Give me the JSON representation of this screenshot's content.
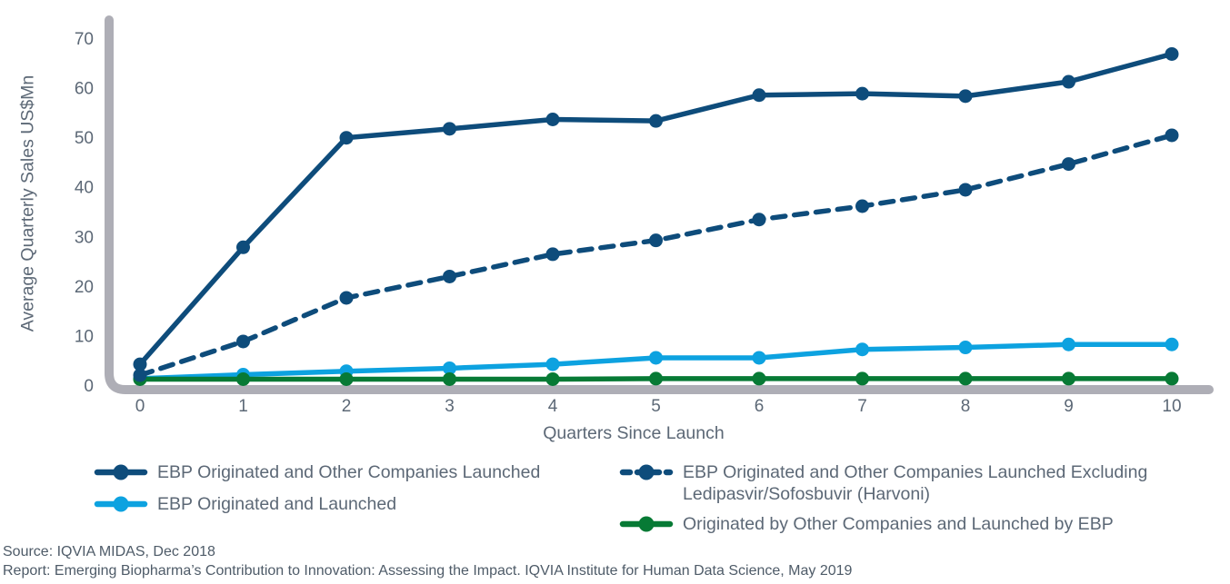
{
  "chart_data": {
    "type": "line",
    "title": "",
    "xlabel": "Quarters Since Launch",
    "ylabel": "Average Quarterly Sales US$Mn",
    "x": [
      0,
      1,
      2,
      3,
      4,
      5,
      6,
      7,
      8,
      9,
      10
    ],
    "yticks": [
      0,
      10,
      20,
      30,
      40,
      50,
      60,
      70
    ],
    "ylim": [
      0,
      70
    ],
    "grid": false,
    "legend_position": "bottom",
    "legend_columns": [
      [
        0,
        2
      ],
      [
        1,
        3
      ]
    ],
    "series": [
      {
        "name": "EBP Originated and Other Companies Launched",
        "color": "#0E4C7B",
        "line_style": "solid",
        "values": [
          4.2,
          27.8,
          49.9,
          51.7,
          53.6,
          53.3,
          58.5,
          58.8,
          58.3,
          61.2,
          66.8
        ]
      },
      {
        "name": "EBP Originated and Other Companies Launched Excluding Ledipasvir/Sofosbuvir (Harvoni)",
        "color": "#0E4C7B",
        "line_style": "dashed",
        "values": [
          2.0,
          8.8,
          17.6,
          21.9,
          26.4,
          29.2,
          33.4,
          36.1,
          39.4,
          44.6,
          50.4
        ]
      },
      {
        "name": "EBP Originated and Launched",
        "color": "#0DA2E0",
        "line_style": "solid",
        "values": [
          1.3,
          2.1,
          2.8,
          3.4,
          4.2,
          5.5,
          5.5,
          7.2,
          7.6,
          8.2,
          8.2
        ]
      },
      {
        "name": "Originated by Other Companies and Launched by EBP",
        "color": "#077A35",
        "line_style": "solid",
        "values": [
          1.2,
          1.2,
          1.2,
          1.2,
          1.2,
          1.3,
          1.3,
          1.3,
          1.3,
          1.3,
          1.3
        ]
      }
    ]
  },
  "footer": {
    "source": "Source: IQVIA MIDAS, Dec 2018",
    "report": "Report: Emerging Biopharma’s Contribution to Innovation: Assessing the Impact. IQVIA Institute for Human Data Science, May 2019"
  },
  "theme": {
    "axis_color": "#AEAEB6",
    "text_color": "#5C6876",
    "background": "#FFFFFF"
  }
}
